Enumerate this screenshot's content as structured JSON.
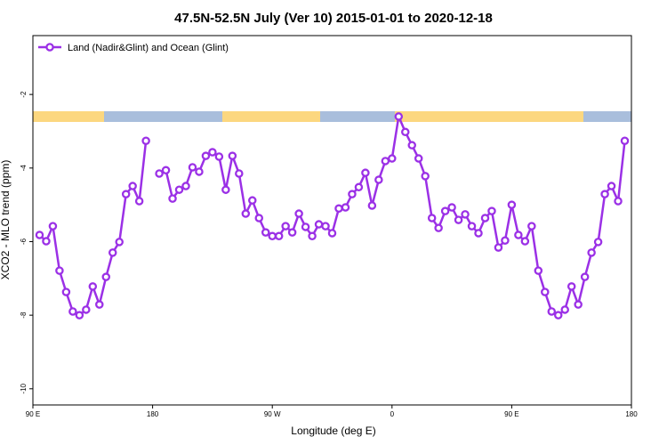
{
  "chart_data": {
    "type": "line",
    "title": "47.5N-52.5N July (Ver 10)   2015-01-01 to 2020-12-18",
    "x_label": "Longitude (deg E)",
    "y_label": "XCO2 - MLO trend (ppm)",
    "x": [
      95,
      100,
      105,
      110,
      115,
      120,
      125,
      130,
      135,
      140,
      145,
      150,
      155,
      160,
      165,
      170,
      175,
      180,
      185,
      190,
      195,
      200,
      205,
      210,
      215,
      220,
      225,
      230,
      235,
      240,
      245,
      250,
      255,
      260,
      265,
      270,
      275,
      280,
      285,
      290,
      295,
      300,
      305,
      310,
      315,
      320,
      325,
      330,
      335,
      340,
      345,
      350,
      355,
      360,
      365,
      370,
      375,
      380,
      385,
      390,
      395,
      400,
      405,
      410,
      415,
      420,
      425,
      430,
      435,
      440,
      445,
      450,
      455,
      460,
      465,
      470,
      475,
      480,
      485,
      490,
      495,
      500,
      505,
      510,
      515,
      520,
      525,
      530,
      535
    ],
    "series": [
      {
        "name": "Land (Nadir&Glint) and Ocean (Glint)",
        "color": "#9b30e6",
        "values": [
          -5.82,
          -5.99,
          -5.58,
          -6.79,
          -7.37,
          -7.9,
          -8.0,
          -7.85,
          -7.22,
          -7.71,
          -6.96,
          -6.3,
          -6.01,
          -4.71,
          -4.49,
          -4.9,
          -3.26,
          null,
          -4.15,
          -4.06,
          -4.83,
          -4.59,
          -4.49,
          -3.98,
          -4.1,
          -3.67,
          -3.57,
          -3.69,
          -4.59,
          -3.67,
          -4.15,
          -5.24,
          -4.88,
          -5.36,
          -5.75,
          -5.85,
          -5.85,
          -5.58,
          -5.75,
          -5.24,
          -5.6,
          -5.85,
          -5.53,
          -5.58,
          -5.77,
          -5.1,
          -5.07,
          -4.71,
          -4.52,
          -4.13,
          -5.02,
          -4.32,
          -3.81,
          -3.74,
          -2.6,
          -3.02,
          -3.38,
          -3.74,
          -4.22,
          -5.36,
          -5.63,
          -5.17,
          -5.07,
          -5.41,
          -5.26,
          -5.58,
          -5.77,
          -5.36,
          -5.17,
          -6.16,
          -5.97,
          -5.0,
          -5.82,
          -5.99,
          -5.58,
          -6.79,
          -7.37,
          -7.9,
          -8.0,
          -7.85,
          -7.22,
          -7.71,
          -6.96,
          -6.3,
          -6.01,
          -4.71,
          -4.49,
          -4.9,
          -3.26
        ]
      }
    ],
    "xlim": [
      90,
      540
    ],
    "xticks": [
      {
        "value": 90,
        "label": "90 E"
      },
      180,
      {
        "value": 270,
        "label": "90 W"
      },
      {
        "value": 360,
        "label": "0"
      },
      {
        "value": 450,
        "label": "90 E"
      },
      {
        "value": 540,
        "label": "180"
      }
    ],
    "ylim": [
      -10.44,
      -0.4
    ],
    "yticks": [
      -2,
      -4,
      -6,
      -8,
      -10
    ],
    "legend": "top-left"
  }
}
